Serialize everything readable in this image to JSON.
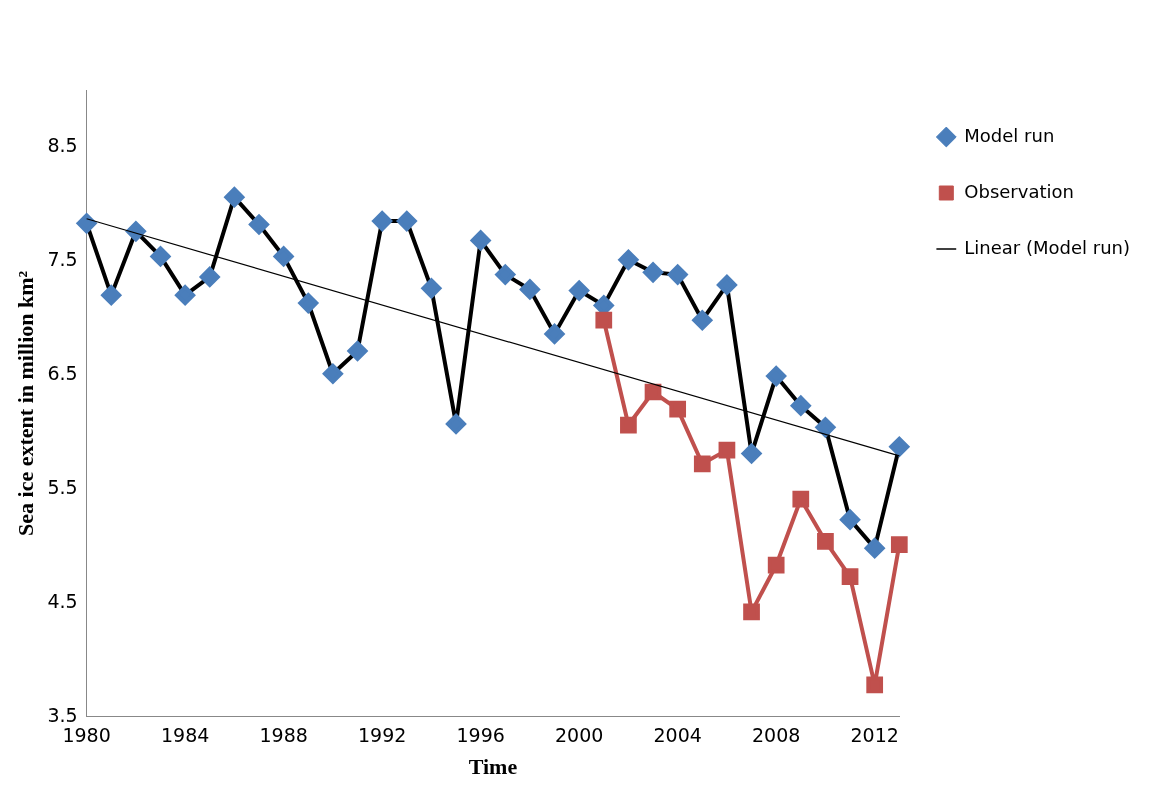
{
  "chart_data": {
    "type": "line",
    "xlabel": "Time",
    "ylabel": "Sea ice extent in million km²",
    "x": [
      1980,
      1981,
      1982,
      1983,
      1984,
      1985,
      1986,
      1987,
      1988,
      1989,
      1990,
      1991,
      1992,
      1993,
      1994,
      1995,
      1996,
      1997,
      1998,
      1999,
      2000,
      2001,
      2002,
      2003,
      2004,
      2005,
      2006,
      2007,
      2008,
      2009,
      2010,
      2011,
      2012,
      2013
    ],
    "xlim": [
      1980,
      2013
    ],
    "xticks": [
      1980,
      1984,
      1988,
      1992,
      1996,
      2000,
      2004,
      2008,
      2012
    ],
    "ylim": [
      3.5,
      9
    ],
    "yticks": [
      3.5,
      4.5,
      5.5,
      6.5,
      7.5,
      8.5
    ],
    "grid": false,
    "legend": "right",
    "series": [
      {
        "name": "Model run",
        "color": "#000000",
        "marker": "diamond",
        "values": [
          7.83,
          7.2,
          7.76,
          7.54,
          7.2,
          7.36,
          8.06,
          7.82,
          7.54,
          7.13,
          6.51,
          6.71,
          7.85,
          7.85,
          7.26,
          6.07,
          7.68,
          7.38,
          7.25,
          6.86,
          7.24,
          7.11,
          7.51,
          7.4,
          7.38,
          6.98,
          7.29,
          5.81,
          6.49,
          6.23,
          6.04,
          5.23,
          4.98,
          5.87
        ]
      },
      {
        "name": "Observation",
        "color": "#c0504d",
        "marker": "square",
        "x": [
          2001,
          2002,
          2003,
          2004,
          2005,
          2006,
          2007,
          2008,
          2009,
          2010,
          2011,
          2012,
          2013
        ],
        "values": [
          6.98,
          6.06,
          6.35,
          6.2,
          5.72,
          5.84,
          4.42,
          4.83,
          5.41,
          5.04,
          4.73,
          3.78,
          5.01
        ]
      },
      {
        "name": "Linear (Model run)",
        "color": "#000000",
        "marker": "none",
        "x": [
          1980,
          2013
        ],
        "values": [
          7.87,
          5.79
        ]
      }
    ]
  }
}
